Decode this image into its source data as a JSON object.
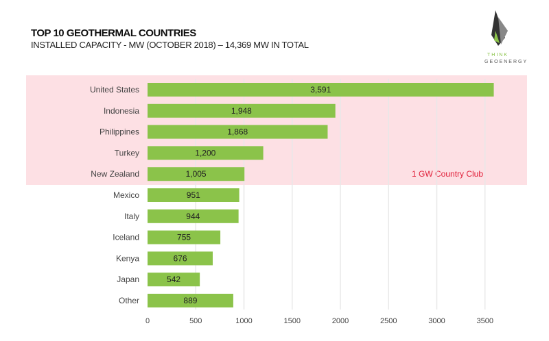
{
  "chart_data": {
    "type": "bar",
    "orientation": "horizontal",
    "title": "TOP 10 GEOTHERMAL COUNTRIES",
    "subtitle": "INSTALLED CAPACITY - MW (OCTOBER 2018) – 14,369 MW IN TOTAL",
    "categories": [
      "United States",
      "Indonesia",
      "Philippines",
      "Turkey",
      "New Zealand",
      "Mexico",
      "Italy",
      "Iceland",
      "Kenya",
      "Japan",
      "Other"
    ],
    "values": [
      3591,
      1948,
      1868,
      1200,
      1005,
      951,
      944,
      755,
      676,
      542,
      889
    ],
    "data_labels": [
      "3,591",
      "1,948",
      "1,868",
      "1,200",
      "1,005",
      "951",
      "944",
      "755",
      "676",
      "542",
      "889"
    ],
    "xlim": [
      0,
      3600
    ],
    "x_ticks": [
      "0",
      "500",
      "1000",
      "1500",
      "2000",
      "2500",
      "3000",
      "3500"
    ],
    "grid": true,
    "annotation": "1 GW Country Club",
    "highlight_categories": [
      "United States",
      "Indonesia",
      "Philippines",
      "Turkey",
      "New Zealand"
    ],
    "colors": {
      "bar": "#8bc34a",
      "highlight": "#fde0e4",
      "annotation": "#e0203a"
    }
  },
  "logo": {
    "line1": "THINK",
    "line2": "GEOENERGY"
  }
}
